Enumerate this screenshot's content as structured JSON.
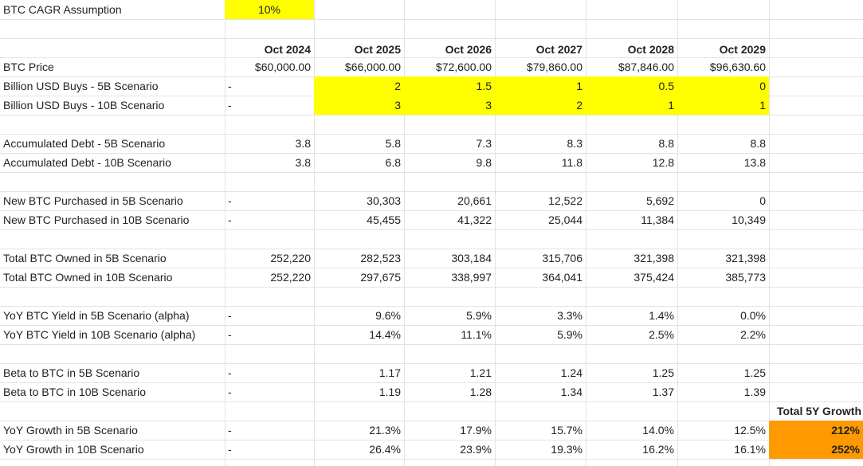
{
  "colors": {
    "highlight": "#ffff00",
    "growth_accent": "#ff9900",
    "gridline": "#e2e3e3"
  },
  "assumption": {
    "label": "BTC CAGR Assumption",
    "value": "10%"
  },
  "headers": [
    "Oct 2024",
    "Oct 2025",
    "Oct 2026",
    "Oct 2027",
    "Oct 2028",
    "Oct 2029"
  ],
  "rows": [
    {
      "row": 3,
      "label": "BTC Price",
      "dash": "",
      "values": [
        "$60,000.00",
        "$66,000.00",
        "$72,600.00",
        "$79,860.00",
        "$87,846.00",
        "$96,630.60"
      ],
      "highlight": false
    },
    {
      "row": 4,
      "label": "Billion USD Buys - 5B Scenario",
      "dash": "-",
      "values": [
        "",
        "2",
        "1.5",
        "1",
        "0.5",
        "0"
      ],
      "highlight": true
    },
    {
      "row": 5,
      "label": "Billion USD Buys - 10B Scenario",
      "dash": "-",
      "values": [
        "",
        "3",
        "3",
        "2",
        "1",
        "1"
      ],
      "highlight": true
    },
    {
      "row": 7,
      "label": "Accumulated Debt - 5B Scenario",
      "dash": "",
      "values": [
        "3.8",
        "5.8",
        "7.3",
        "8.3",
        "8.8",
        "8.8"
      ],
      "highlight": false
    },
    {
      "row": 8,
      "label": "Accumulated Debt - 10B Scenario",
      "dash": "",
      "values": [
        "3.8",
        "6.8",
        "9.8",
        "11.8",
        "12.8",
        "13.8"
      ],
      "highlight": false
    },
    {
      "row": 10,
      "label": "New BTC Purchased in 5B Scenario",
      "dash": "-",
      "values": [
        "",
        "30,303",
        "20,661",
        "12,522",
        "5,692",
        "0"
      ],
      "highlight": false
    },
    {
      "row": 11,
      "label": "New BTC Purchased in 10B Scenario",
      "dash": "-",
      "values": [
        "",
        "45,455",
        "41,322",
        "25,044",
        "11,384",
        "10,349"
      ],
      "highlight": false
    },
    {
      "row": 13,
      "label": "Total BTC Owned in 5B Scenario",
      "dash": "",
      "values": [
        "252,220",
        "282,523",
        "303,184",
        "315,706",
        "321,398",
        "321,398"
      ],
      "highlight": false
    },
    {
      "row": 14,
      "label": "Total BTC Owned in 10B Scenario",
      "dash": "",
      "values": [
        "252,220",
        "297,675",
        "338,997",
        "364,041",
        "375,424",
        "385,773"
      ],
      "highlight": false
    },
    {
      "row": 16,
      "label": "YoY BTC Yield in 5B Scenario (alpha)",
      "dash": "-",
      "values": [
        "",
        "9.6%",
        "5.9%",
        "3.3%",
        "1.4%",
        "0.0%"
      ],
      "highlight": false
    },
    {
      "row": 17,
      "label": "YoY BTC Yield in 10B Scenario (alpha)",
      "dash": "-",
      "values": [
        "",
        "14.4%",
        "11.1%",
        "5.9%",
        "2.5%",
        "2.2%"
      ],
      "highlight": false
    },
    {
      "row": 19,
      "label": "Beta to BTC in 5B Scenario",
      "dash": "-",
      "values": [
        "",
        "1.17",
        "1.21",
        "1.24",
        "1.25",
        "1.25"
      ],
      "highlight": false
    },
    {
      "row": 20,
      "label": "Beta to BTC in 10B Scenario",
      "dash": "-",
      "values": [
        "",
        "1.19",
        "1.28",
        "1.34",
        "1.37",
        "1.39"
      ],
      "highlight": false
    },
    {
      "row": 22,
      "label": "YoY Growth in 5B Scenario",
      "dash": "-",
      "values": [
        "",
        "21.3%",
        "17.9%",
        "15.7%",
        "14.0%",
        "12.5%"
      ],
      "highlight": false
    },
    {
      "row": 23,
      "label": "YoY Growth in 10B Scenario",
      "dash": "-",
      "values": [
        "",
        "26.4%",
        "23.9%",
        "19.3%",
        "16.2%",
        "16.1%"
      ],
      "highlight": false
    }
  ],
  "total_growth": {
    "header": "Total 5Y Growth",
    "values": [
      "212%",
      "252%"
    ]
  }
}
